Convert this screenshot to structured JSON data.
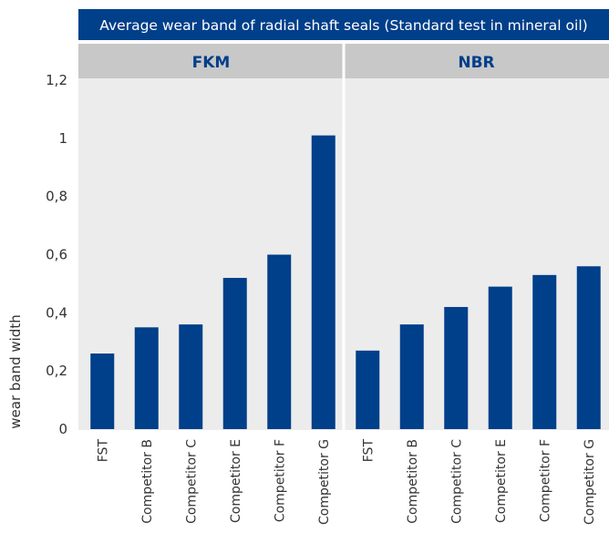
{
  "chart_data": {
    "type": "bar",
    "title": "Average wear band of radial shaft seals (Standard test in mineral oil)",
    "ylabel": "wear band width",
    "ylim": [
      0,
      1.2
    ],
    "yticks": [
      "0",
      "0,2",
      "0,4",
      "0,6",
      "0,8",
      "1",
      "1,2"
    ],
    "grid": false,
    "legend": "none",
    "colors": {
      "bar": "#003f8a",
      "title_bg": "#003f8a",
      "title_text": "#ffffff",
      "panel_header_bg": "#c8c8c8",
      "panel_header_text": "#003f8a",
      "plot_bg": "#ececec",
      "divider": "#ffffff",
      "axis_text": "#333333"
    },
    "panels": [
      {
        "name": "FKM",
        "categories": [
          "FST",
          "Competitor B",
          "Competitor C",
          "Competitor E",
          "Competitor F",
          "Competitor G"
        ],
        "values": [
          0.26,
          0.35,
          0.36,
          0.52,
          0.6,
          1.01
        ]
      },
      {
        "name": "NBR",
        "categories": [
          "FST",
          "Competitor B",
          "Competitor C",
          "Competitor E",
          "Competitor F",
          "Competitor G"
        ],
        "values": [
          0.27,
          0.36,
          0.42,
          0.49,
          0.53,
          0.56
        ]
      }
    ]
  }
}
